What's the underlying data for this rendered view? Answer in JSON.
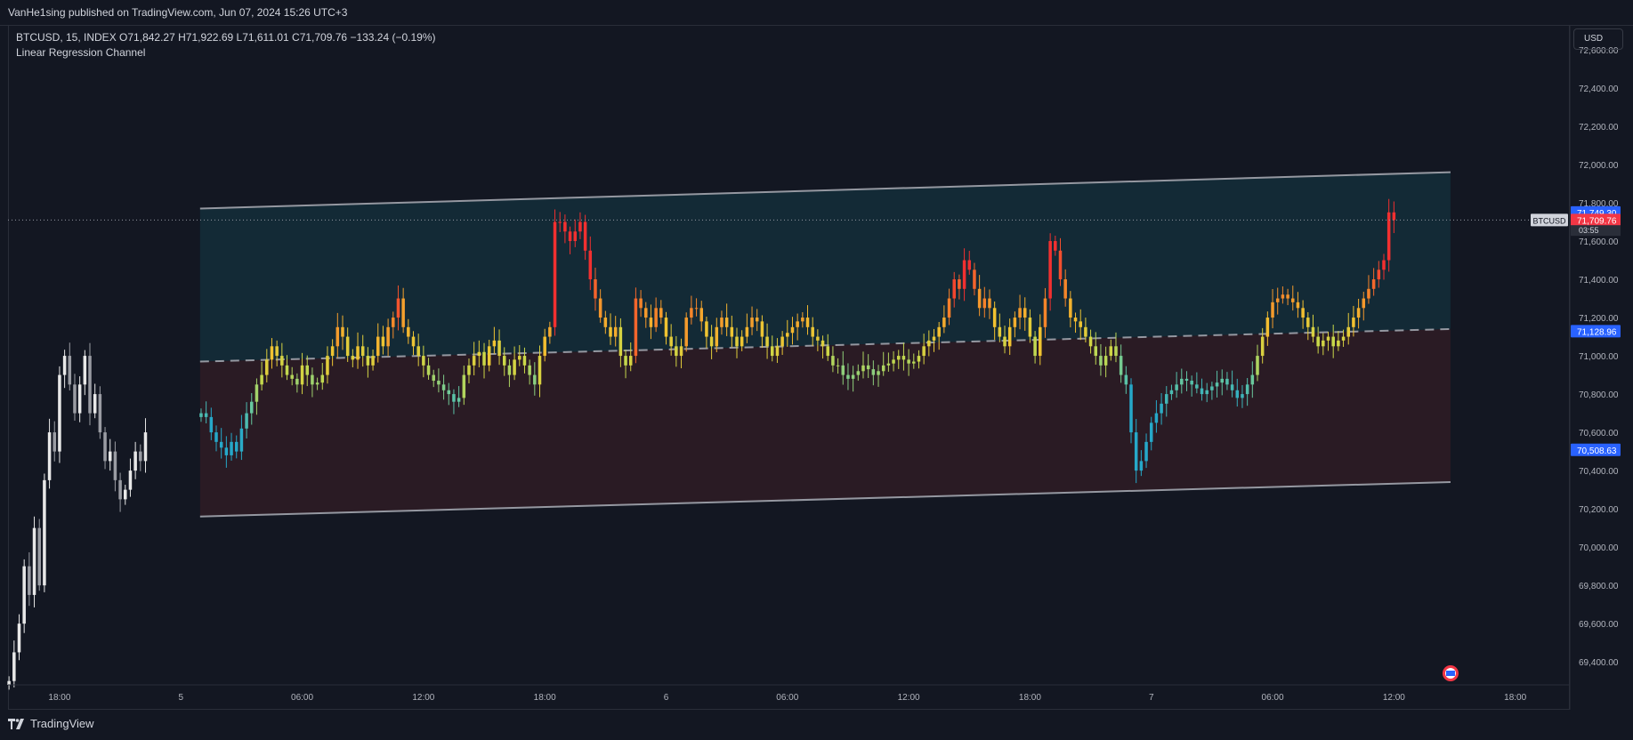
{
  "publisher": "VanHe1sing published on TradingView.com, Jun 07, 2024 15:26 UTC+3",
  "legend": {
    "symbol": "BTCUSD, 15, INDEX",
    "open": "O71,842.27",
    "high": "H71,922.69",
    "low": "L71,611.01",
    "close": "C71,709.76",
    "change": "−133.24 (−0.19%)",
    "indicator": "Linear Regression Channel"
  },
  "currency_button": "USD",
  "footer_brand": "TradingView",
  "chart_data": {
    "type": "candlestick",
    "symbol": "BTCUSD",
    "interval": "15",
    "y_ticks": [
      "72,600.00",
      "72,400.00",
      "72,200.00",
      "72,000.00",
      "71,800.00",
      "71,600.00",
      "71,400.00",
      "71,200.00",
      "71,000.00",
      "70,800.00",
      "70,600.00",
      "70,400.00",
      "70,200.00",
      "70,000.00",
      "69,800.00",
      "69,600.00",
      "69,400.00"
    ],
    "y_tick_values": [
      72600,
      72400,
      72200,
      72000,
      71800,
      71600,
      71400,
      71200,
      71000,
      70800,
      70600,
      70400,
      70200,
      70000,
      69800,
      69600,
      69400
    ],
    "ylim": [
      69280,
      72730
    ],
    "x_ticks": [
      "18:00",
      "5",
      "06:00",
      "12:00",
      "18:00",
      "6",
      "06:00",
      "12:00",
      "18:00",
      "7",
      "06:00",
      "12:00",
      "18:00"
    ],
    "x_tick_hours": [
      18,
      24,
      30,
      36,
      42,
      48,
      54,
      60,
      66,
      72,
      78,
      84,
      90
    ],
    "xlim_hours": [
      15.45,
      92.7
    ],
    "price_labels": [
      {
        "text": "71,749.30",
        "value": 71749.3,
        "color": "#2962ff"
      },
      {
        "text": "71,709.76",
        "value": 71709.76,
        "color": "#f23645"
      },
      {
        "text": "03:55",
        "value": 71655,
        "color": "#d1d4dc"
      },
      {
        "text": "71,128.96",
        "value": 71128.96,
        "color": "#2962ff"
      },
      {
        "text": "70,508.63",
        "value": 70508.63,
        "color": "#2962ff"
      }
    ],
    "symbol_tag": "BTCUSD",
    "current_price": 71709.76,
    "regression_channel": {
      "start_hour": 24.95,
      "end_hour": 86.8,
      "upper": [
        71770,
        71960
      ],
      "mid": [
        70970,
        71140
      ],
      "lower": [
        70160,
        70340
      ],
      "upper_fill": "#132a36",
      "lower_fill": "#2a1b24",
      "line_color": "#9598a1"
    },
    "gradient_colors": [
      "#26a8c9",
      "#65c7a0",
      "#c8d94a",
      "#f2c230",
      "#f5832a",
      "#f23030"
    ],
    "pre_channel_candles": {
      "start_hour": 15.5,
      "step_hours": 0.25,
      "closes": [
        69300,
        69450,
        69600,
        69900,
        69750,
        70100,
        69800,
        70350,
        70600,
        70500,
        70900,
        71000,
        70850,
        70700,
        70850,
        71000,
        70700,
        70800,
        70600,
        70450,
        70500,
        70350,
        70250,
        70300,
        70400,
        70500,
        70450,
        70600
      ]
    },
    "channel_candles": {
      "start_hour": 25.0,
      "step_hours": 0.25,
      "closes": [
        70700,
        70680,
        70600,
        70550,
        70520,
        70480,
        70550,
        70500,
        70620,
        70700,
        70760,
        70850,
        70900,
        70980,
        71050,
        71000,
        70950,
        70900,
        70880,
        70850,
        70950,
        70900,
        70850,
        70860,
        70900,
        71000,
        71050,
        71150,
        71100,
        71000,
        70980,
        71050,
        71000,
        70950,
        71000,
        71100,
        71050,
        71150,
        71200,
        71300,
        71150,
        71100,
        71050,
        71000,
        70950,
        70900,
        70870,
        70850,
        70820,
        70800,
        70760,
        70780,
        70900,
        70950,
        71000,
        71020,
        70950,
        71050,
        71080,
        71000,
        70950,
        70900,
        70980,
        71000,
        70950,
        70900,
        70850,
        71000,
        71100,
        71150,
        71700,
        71700,
        71650,
        71600,
        71650,
        71700,
        71550,
        71400,
        71300,
        71200,
        71150,
        71100,
        71150,
        71000,
        70950,
        71000,
        71300,
        71250,
        71200,
        71150,
        71250,
        71200,
        71100,
        71050,
        71000,
        71050,
        71200,
        71250,
        71250,
        71180,
        71100,
        71050,
        71150,
        71200,
        71150,
        71100,
        71050,
        71100,
        71150,
        71200,
        71180,
        71100,
        71050,
        71000,
        71050,
        71100,
        71120,
        71150,
        71180,
        71200,
        71150,
        71100,
        71080,
        71050,
        71000,
        70950,
        70950,
        70900,
        70880,
        70900,
        70920,
        70950,
        70930,
        70900,
        70920,
        70950,
        70960,
        70980,
        71000,
        70980,
        70960,
        70970,
        71000,
        71050,
        71080,
        71100,
        71150,
        71200,
        71300,
        71400,
        71350,
        71500,
        71450,
        71350,
        71250,
        71300,
        71250,
        71150,
        71100,
        71050,
        71150,
        71200,
        71250,
        71200,
        71100,
        71000,
        71150,
        71300,
        71600,
        71550,
        71400,
        71300,
        71200,
        71180,
        71150,
        71100,
        71050,
        71000,
        70950,
        71000,
        71050,
        71000,
        70900,
        70850,
        70600,
        70400,
        70450,
        70550,
        70650,
        70700,
        70750,
        70800,
        70820,
        70850,
        70880,
        70870,
        70850,
        70830,
        70800,
        70820,
        70840,
        70860,
        70880,
        70850,
        70820,
        70780,
        70800,
        70850,
        70900,
        71000,
        71100,
        71200,
        71280,
        71300,
        71320,
        71300,
        71280,
        71250,
        71200,
        71150,
        71100,
        71050,
        71080,
        71100,
        71050,
        71080,
        71100,
        71150,
        71200,
        71250,
        71300,
        71350,
        71400,
        71450,
        71500,
        71750,
        71709.76
      ]
    }
  }
}
